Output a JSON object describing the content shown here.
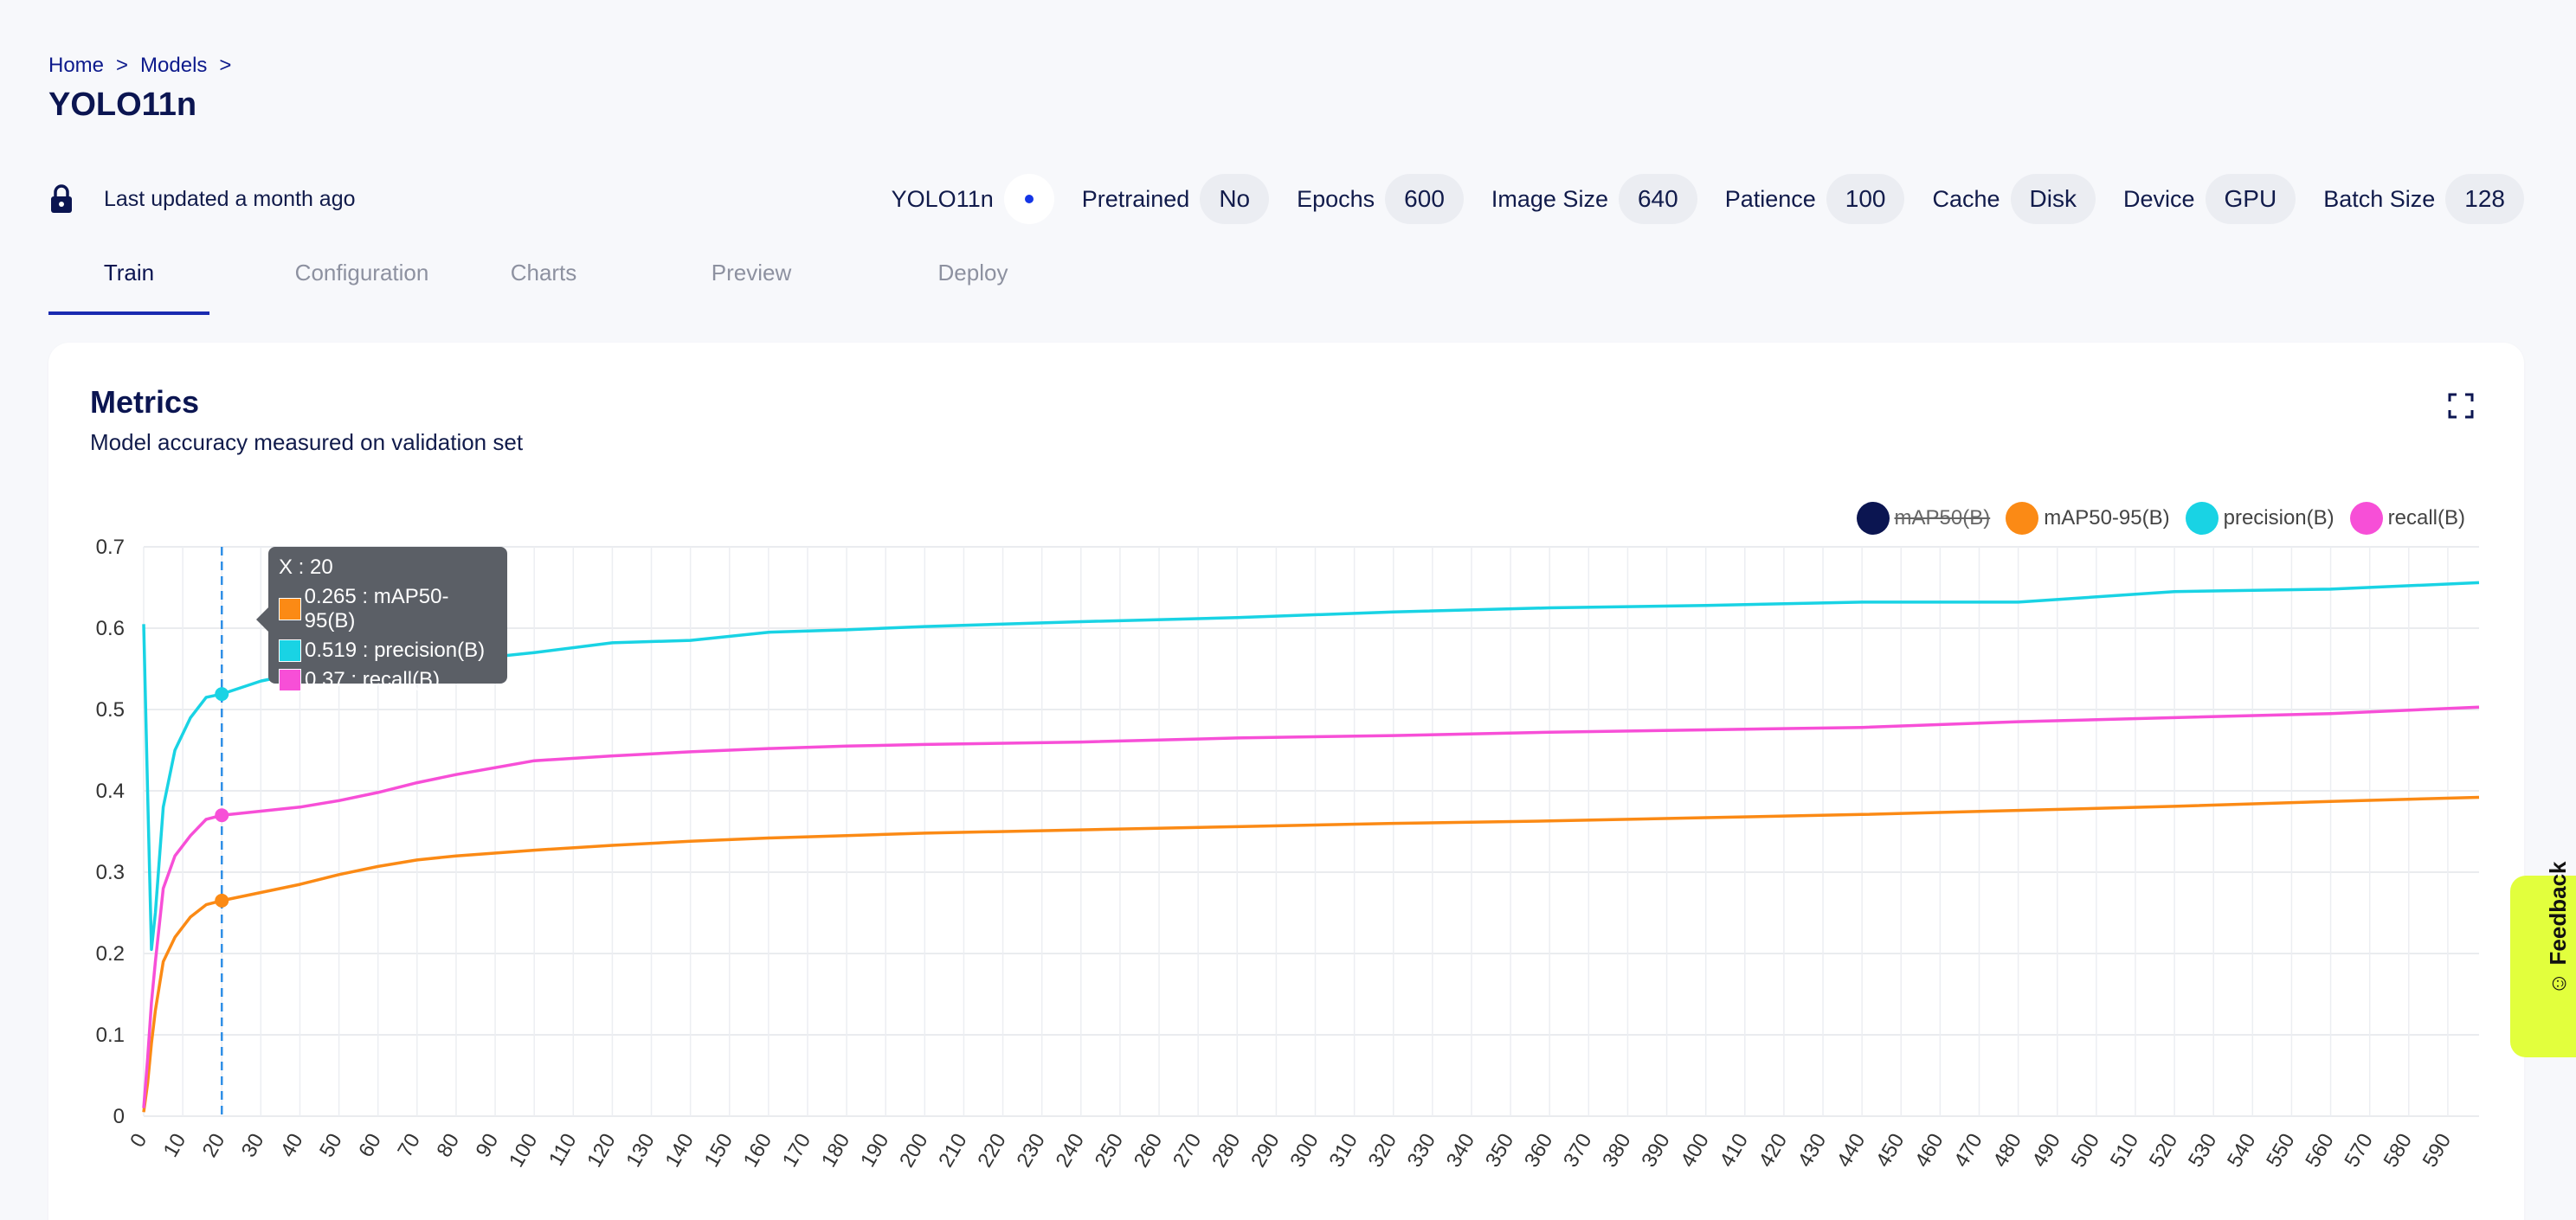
{
  "breadcrumb": {
    "home": "Home",
    "models": "Models",
    "sep": ">"
  },
  "page_title": "YOLO11n",
  "status": {
    "last_updated": "Last updated a month ago",
    "lock_icon": "lock-icon"
  },
  "params": {
    "model_name": "YOLO11n",
    "pretrained": {
      "label": "Pretrained",
      "value": "No"
    },
    "epochs": {
      "label": "Epochs",
      "value": "600"
    },
    "image_size": {
      "label": "Image Size",
      "value": "640"
    },
    "patience": {
      "label": "Patience",
      "value": "100"
    },
    "cache": {
      "label": "Cache",
      "value": "Disk"
    },
    "device": {
      "label": "Device",
      "value": "GPU"
    },
    "batch_size": {
      "label": "Batch Size",
      "value": "128"
    }
  },
  "tabs": [
    "Train",
    "Configuration",
    "Charts",
    "Preview",
    "Deploy"
  ],
  "active_tab": "Train",
  "metrics_card": {
    "title": "Metrics",
    "subtitle": "Model accuracy measured on validation set"
  },
  "legend": [
    {
      "name": "mAP50(B)",
      "color": "#0b1551",
      "visible": false
    },
    {
      "name": "mAP50-95(B)",
      "color": "#fb8a15",
      "visible": true
    },
    {
      "name": "precision(B)",
      "color": "#19d3e4",
      "visible": true
    },
    {
      "name": "recall(B)",
      "color": "#f74fd7",
      "visible": true
    }
  ],
  "tooltip": {
    "x_label": "X : 20",
    "rows": [
      {
        "text": "0.265 : mAP50-95(B)",
        "color": "#fb8a15"
      },
      {
        "text": "0.519 : precision(B)",
        "color": "#19d3e4"
      },
      {
        "text": "0.37 : recall(B)",
        "color": "#f74fd7"
      }
    ]
  },
  "feedback": {
    "label": "Feedback"
  },
  "chart_data": {
    "type": "line",
    "xlim": [
      0,
      598
    ],
    "ylim": [
      0,
      0.7
    ],
    "y_ticks": [
      "0",
      "0.1",
      "0.2",
      "0.3",
      "0.4",
      "0.5",
      "0.6",
      "0.7"
    ],
    "x_ticks": [
      0,
      10,
      20,
      30,
      40,
      50,
      60,
      70,
      80,
      90,
      100,
      110,
      120,
      130,
      140,
      150,
      160,
      170,
      180,
      190,
      200,
      210,
      220,
      230,
      240,
      250,
      260,
      270,
      280,
      290,
      300,
      310,
      320,
      330,
      340,
      350,
      360,
      370,
      380,
      390,
      400,
      410,
      420,
      430,
      440,
      450,
      460,
      470,
      480,
      490,
      500,
      510,
      520,
      530,
      540,
      550,
      560,
      570,
      580,
      590
    ],
    "grid": true,
    "legend_position": "top-right",
    "hover_x": 20,
    "series": [
      {
        "name": "mAP50-95(B)",
        "color": "#fb8a15",
        "x": [
          0,
          1,
          2,
          3,
          5,
          8,
          12,
          16,
          20,
          30,
          40,
          50,
          60,
          70,
          80,
          100,
          120,
          140,
          160,
          180,
          200,
          240,
          280,
          320,
          360,
          400,
          440,
          480,
          520,
          560,
          598
        ],
        "y": [
          0.005,
          0.04,
          0.09,
          0.13,
          0.19,
          0.22,
          0.245,
          0.26,
          0.265,
          0.275,
          0.285,
          0.297,
          0.307,
          0.315,
          0.32,
          0.327,
          0.333,
          0.338,
          0.342,
          0.345,
          0.348,
          0.352,
          0.356,
          0.36,
          0.363,
          0.367,
          0.371,
          0.376,
          0.381,
          0.387,
          0.392
        ]
      },
      {
        "name": "precision(B)",
        "color": "#19d3e4",
        "x": [
          0,
          1,
          2,
          3,
          5,
          8,
          12,
          16,
          20,
          30,
          40,
          50,
          60,
          70,
          80,
          100,
          120,
          140,
          160,
          180,
          200,
          240,
          280,
          320,
          360,
          400,
          440,
          480,
          520,
          560,
          598
        ],
        "y": [
          0.605,
          0.4,
          0.205,
          0.25,
          0.38,
          0.45,
          0.49,
          0.515,
          0.519,
          0.535,
          0.545,
          0.55,
          0.553,
          0.556,
          0.56,
          0.57,
          0.582,
          0.585,
          0.595,
          0.598,
          0.602,
          0.608,
          0.613,
          0.62,
          0.625,
          0.628,
          0.632,
          0.632,
          0.645,
          0.648,
          0.656
        ]
      },
      {
        "name": "recall(B)",
        "color": "#f74fd7",
        "x": [
          0,
          1,
          2,
          3,
          5,
          8,
          12,
          16,
          20,
          30,
          40,
          50,
          60,
          70,
          80,
          100,
          120,
          140,
          160,
          180,
          200,
          240,
          280,
          320,
          360,
          400,
          440,
          480,
          520,
          560,
          598
        ],
        "y": [
          0.01,
          0.07,
          0.14,
          0.19,
          0.28,
          0.32,
          0.345,
          0.365,
          0.37,
          0.375,
          0.38,
          0.388,
          0.398,
          0.41,
          0.42,
          0.437,
          0.443,
          0.448,
          0.452,
          0.455,
          0.457,
          0.46,
          0.465,
          0.468,
          0.472,
          0.475,
          0.478,
          0.485,
          0.49,
          0.495,
          0.503
        ]
      }
    ]
  }
}
